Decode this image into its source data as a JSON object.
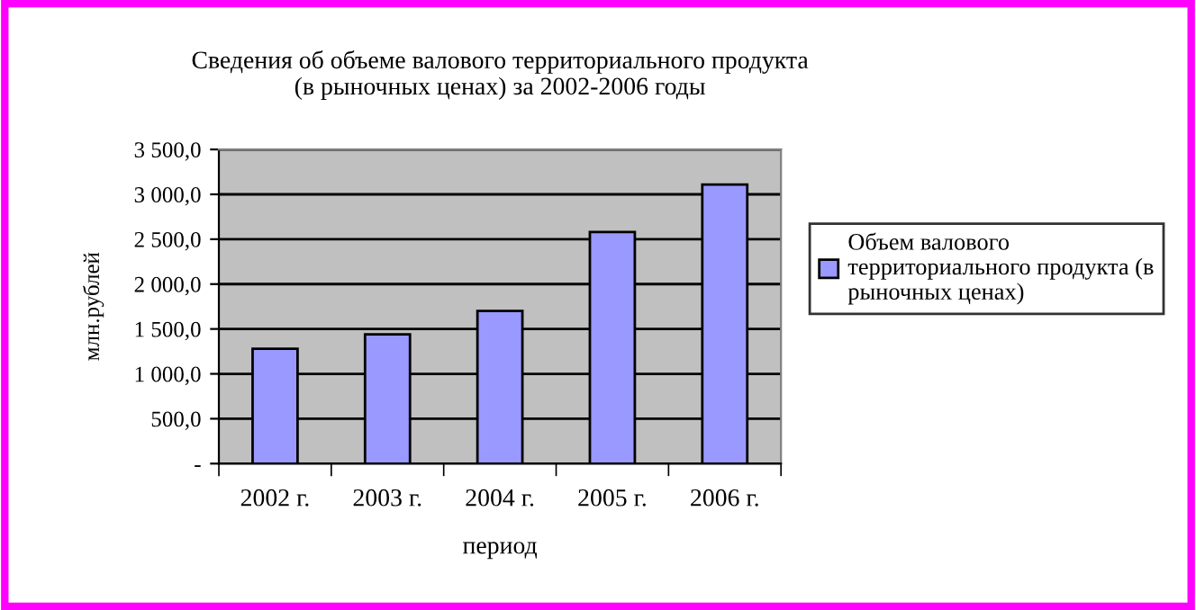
{
  "chart_data": {
    "type": "bar",
    "title": "Сведения об объеме валового территориального продукта\n(в рыночных ценах) за 2002-2006 годы",
    "xlabel": "период",
    "ylabel": "млн.рублей",
    "categories": [
      "2002 г.",
      "2003 г.",
      "2004 г.",
      "2005 г.",
      "2006 г."
    ],
    "series": [
      {
        "name": "Объем валового территориального продукта (в рыночных ценах)",
        "color": "#9999ff",
        "values": [
          1280,
          1440,
          1700,
          2580,
          3110
        ]
      }
    ],
    "ylim": [
      0,
      3500
    ],
    "yticks": [
      {
        "value": 0,
        "label": "-"
      },
      {
        "value": 500,
        "label": "500,0"
      },
      {
        "value": 1000,
        "label": "1 000,0"
      },
      {
        "value": 1500,
        "label": "1 500,0"
      },
      {
        "value": 2000,
        "label": "2 000,0"
      },
      {
        "value": 2500,
        "label": "2 500,0"
      },
      {
        "value": 3000,
        "label": "3 000,0"
      },
      {
        "value": 3500,
        "label": "3 500,0"
      }
    ],
    "grid": "y",
    "legend": "right"
  }
}
